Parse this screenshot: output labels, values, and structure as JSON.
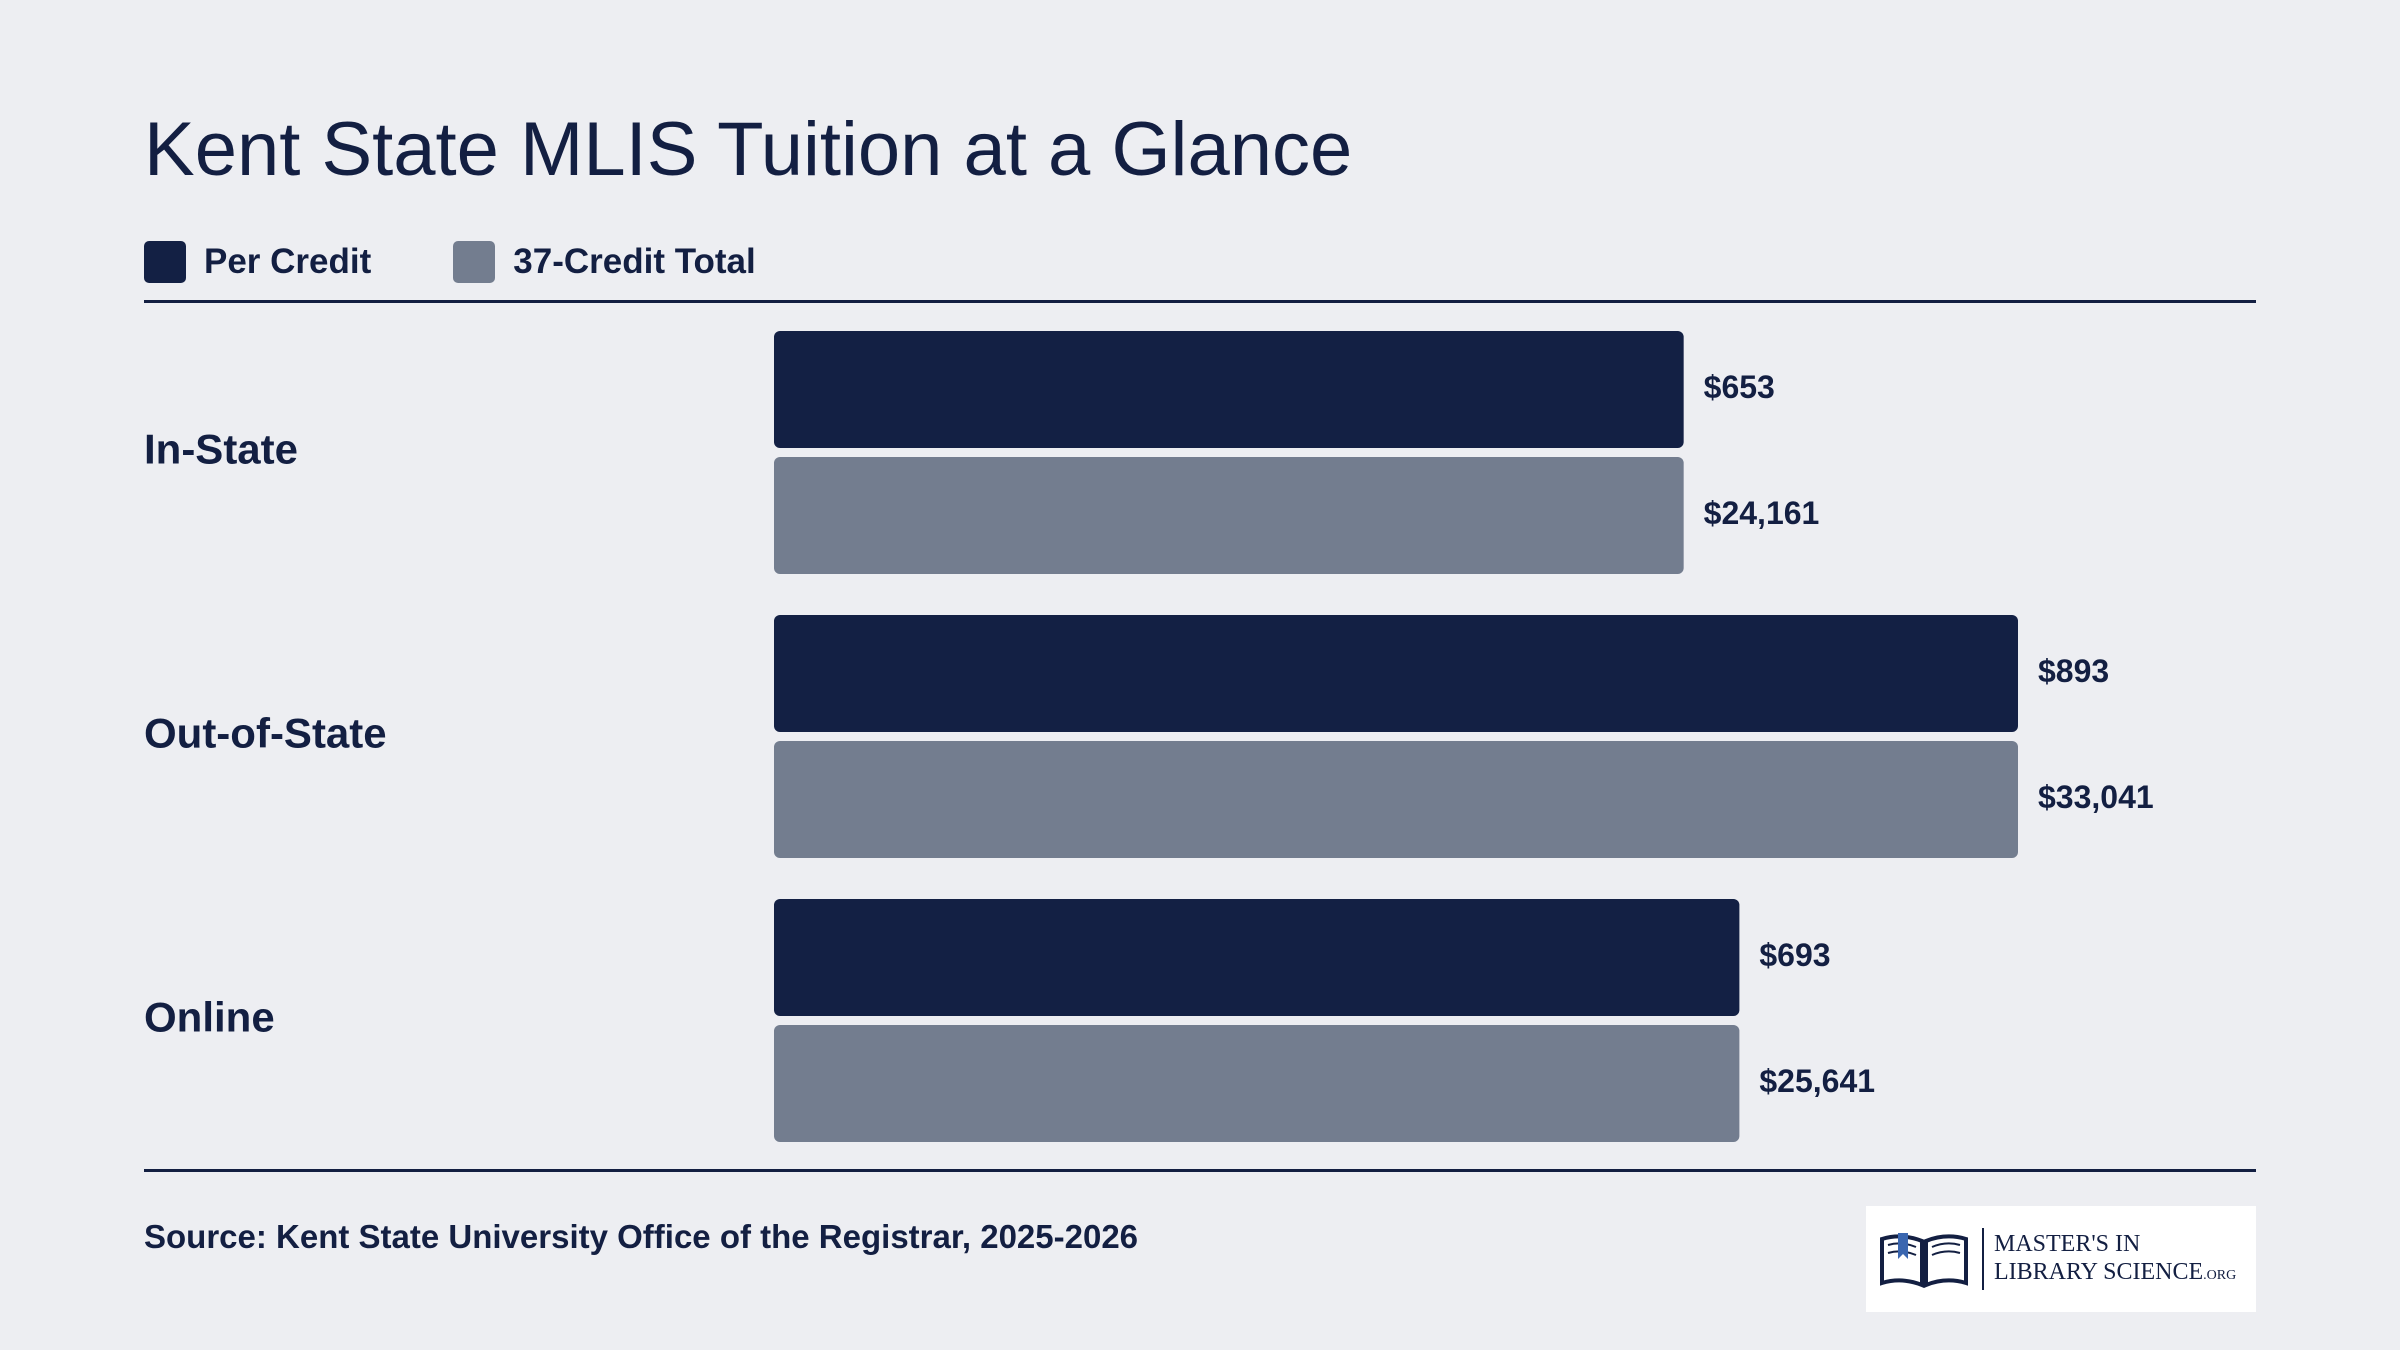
{
  "chart_data": {
    "type": "bar",
    "orientation": "horizontal",
    "title": "Kent State MLIS Tuition at a Glance",
    "categories": [
      "In-State",
      "Out-of-State",
      "Online"
    ],
    "series": [
      {
        "name": "Per Credit",
        "values": [
          653,
          893,
          693
        ],
        "labels": [
          "$653",
          "$893",
          "$693"
        ],
        "color": "#132044"
      },
      {
        "name": "37-Credit Total",
        "values": [
          24161,
          33041,
          25641
        ],
        "labels": [
          "$24,161",
          "$33,041",
          "$25,641"
        ],
        "color": "#737d8f"
      }
    ],
    "legend_position": "top-left",
    "grid": false
  },
  "footer": {
    "source": "Source: Kent State University Office of the Registrar, 2025-2026",
    "logo_line1": "MASTER'S IN",
    "logo_line2": "LIBRARY SCIENCE",
    "logo_suffix": ".ORG"
  },
  "colors": {
    "background": "#edeef2",
    "text": "#131f42",
    "per_credit": "#132044",
    "total": "#737d8f"
  }
}
